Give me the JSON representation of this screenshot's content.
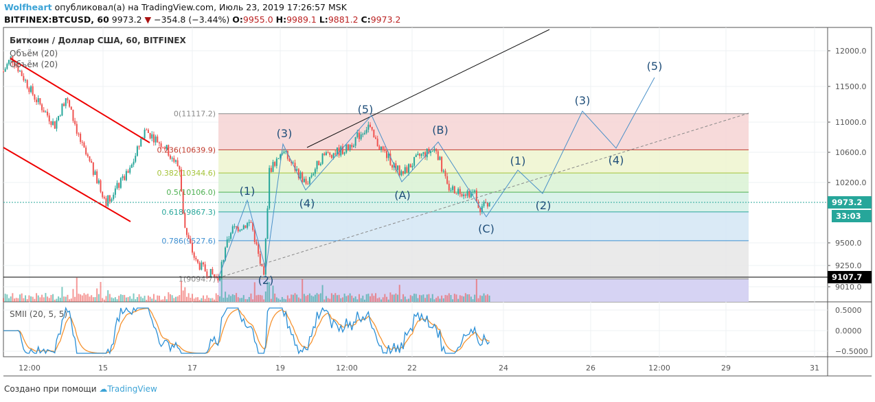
{
  "header": {
    "author": "Wolfheart",
    "published": "опубликовал(а) на TradingView.com, Июль 23, 2019 17:26:57 MSK",
    "symbol": "BITFINEX:BTCUSD, 60",
    "last": "9973.2",
    "change": "−354.8 (−3.44%)",
    "o_label": "O:",
    "o": "9955.0",
    "h_label": "H:",
    "h": "9989.1",
    "l_label": "L:",
    "l": "9881.2",
    "c_label": "C:",
    "c": "9973.2"
  },
  "legend": {
    "title": "Биткоин / Доллар США, 60, BITFINEX",
    "vol1": "Объём (20)",
    "vol2": "Объём (20)",
    "smii": "SMII (20, 5, 5)"
  },
  "price_axis": [
    "12000.0",
    "11500.0",
    "11000.0",
    "10600.0",
    "10200.0",
    "9500.0",
    "9250.0",
    "9010.0"
  ],
  "price_tags": {
    "last": "9973.2",
    "countdown": "33:03",
    "line": "9107.7"
  },
  "smii_axis": [
    "0.5000",
    "0.0000",
    "−0.5000"
  ],
  "time_axis": [
    "12:00",
    "15",
    "17",
    "19",
    "12:00",
    "22",
    "24",
    "26",
    "12:00",
    "29",
    "31"
  ],
  "fib": [
    {
      "label": "0(11117.2)",
      "color": "#888"
    },
    {
      "label": "0.236(10639.9)",
      "color": "#c0392b"
    },
    {
      "label": "0.382(10344.6)",
      "color": "#a5c339"
    },
    {
      "label": "0.5(10106.0)",
      "color": "#4caf50"
    },
    {
      "label": "0.618(9867.3)",
      "color": "#26a69a"
    },
    {
      "label": "0.786(9527.6)",
      "color": "#3d8fd1"
    },
    {
      "label": "1(9094.7)",
      "color": "#888"
    }
  ],
  "waves": [
    "(1)",
    "(2)",
    "(3)",
    "(4)",
    "(5)",
    "(A)",
    "(B)",
    "(C)",
    "(1)",
    "(2)",
    "(3)",
    "(4)",
    "(5)"
  ],
  "footer": {
    "text": "Создано при помощи",
    "brand": "TradingView"
  },
  "colors": {
    "up": "#26a69a",
    "down": "#ef5350",
    "wave": "#4a90c8"
  },
  "chart_data": {
    "type": "candlestick",
    "symbol": "BTCUSD",
    "interval": "60",
    "close_path_hour_price": [
      [
        0,
        11700
      ],
      [
        4,
        11893
      ],
      [
        6,
        11840
      ],
      [
        17,
        11340
      ],
      [
        28,
        10960
      ],
      [
        34,
        11340
      ],
      [
        43,
        10680
      ],
      [
        56,
        9990
      ],
      [
        69,
        10370
      ],
      [
        77,
        10900
      ],
      [
        88,
        10680
      ],
      [
        96,
        10400
      ],
      [
        99,
        9650
      ],
      [
        105,
        9280
      ],
      [
        110,
        9190
      ],
      [
        117,
        9100
      ],
      [
        124,
        9650
      ],
      [
        135,
        9740
      ],
      [
        142,
        9090
      ],
      [
        145,
        10370
      ],
      [
        152,
        10630
      ],
      [
        165,
        10210
      ],
      [
        174,
        10560
      ],
      [
        187,
        10650
      ],
      [
        199,
        10960
      ],
      [
        202,
        10780
      ],
      [
        217,
        10320
      ],
      [
        227,
        10560
      ],
      [
        236,
        10650
      ],
      [
        242,
        10170
      ],
      [
        247,
        10130
      ],
      [
        257,
        10090
      ],
      [
        260,
        9910
      ],
      [
        265,
        9973
      ]
    ],
    "fib_levels": [
      11117.2,
      10639.9,
      10344.6,
      10106.0,
      9867.3,
      9527.6,
      9094.7
    ]
  }
}
